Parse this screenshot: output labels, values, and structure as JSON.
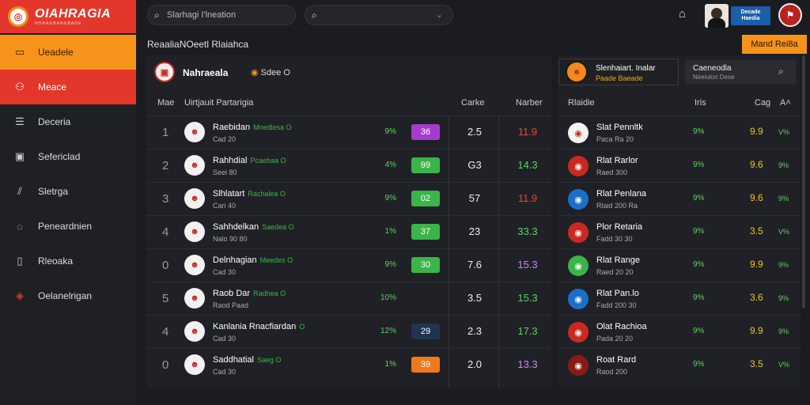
{
  "logo": {
    "title": "OIAHRAGIA",
    "subtitle": "HORAGBANGBAGE"
  },
  "sidebar": {
    "items": [
      {
        "label": "Ueadele",
        "icon": "tablet-icon"
      },
      {
        "label": "Meace",
        "icon": "network-icon"
      },
      {
        "label": "Deceria",
        "icon": "list-icon"
      },
      {
        "label": "Sefericlad",
        "icon": "badge-icon"
      },
      {
        "label": "Sletrga",
        "icon": "chart-icon"
      },
      {
        "label": "Peneardnien",
        "icon": "chat-icon"
      },
      {
        "label": "Rleoaka",
        "icon": "document-icon"
      },
      {
        "label": "Oelanelrigan",
        "icon": "shield-icon"
      }
    ]
  },
  "topbar": {
    "search1": "Slarhagi I'lneation",
    "search2": ""
  },
  "brand2": {
    "line1": "Decade",
    "line2": "Haedia"
  },
  "page": {
    "title": "ReaaliaNOeetl Rlaiahca",
    "action": "Mand Rei8a"
  },
  "match": {
    "team": "Nahraeala",
    "score": "Sdee O"
  },
  "left_headers": {
    "rank": "Mae",
    "player": "Uirtjauit Partarigia",
    "c1": "Carke",
    "c2": "Narber"
  },
  "rows": [
    {
      "rank": "1",
      "name": "Raebidan",
      "tag": "Mnedlesa O",
      "sub": "Cad 20",
      "pct": "9%",
      "pill": "36",
      "pill_color": "purple",
      "v1": "2.5",
      "v2": "11.9",
      "v2_color": "#e8453c"
    },
    {
      "rank": "2",
      "name": "Rahhdial",
      "tag": "Pcaebaa O",
      "sub": "Seei 80",
      "pct": "4%",
      "pill": "99",
      "pill_color": "green",
      "v1": "G3",
      "v2": "14.3",
      "v2_color": "#5ed064"
    },
    {
      "rank": "3",
      "name": "Slhlatart",
      "tag": "Rachalea O",
      "sub": "Cari 40",
      "pct": "9%",
      "pill": "02",
      "pill_color": "green",
      "v1": "57",
      "v2": "11.9",
      "v2_color": "#e8453c"
    },
    {
      "rank": "4",
      "name": "Sahhdelkan",
      "tag": "Saedea O",
      "sub": "Nalo 90 80",
      "pct": "1%",
      "pill": "37",
      "pill_color": "green",
      "v1": "23",
      "v2": "33.3",
      "v2_color": "#5ed064"
    },
    {
      "rank": "0",
      "name": "Delnhagian",
      "tag": "Meedes O",
      "sub": "Cad 30",
      "pct": "9%",
      "pill": "30",
      "pill_color": "green",
      "v1": "7.6",
      "v2": "15.3",
      "v2_color": "#c98ae8"
    },
    {
      "rank": "5",
      "name": "Raob Dar",
      "tag": "Radhea O",
      "sub": "Raod Paad",
      "pct": "10%",
      "pill": "",
      "pill_color": "none",
      "v1": "3.5",
      "v2": "15.3",
      "v2_color": "#5ed064"
    },
    {
      "rank": "4",
      "name": "Kanlania Rnacfiardan",
      "tag": "O",
      "sub": "Cad 30",
      "pct": "12%",
      "pill": "29",
      "pill_color": "dark",
      "v1": "2.3",
      "v2": "17.3",
      "v2_color": "#5ed064"
    },
    {
      "rank": "0",
      "name": "Saddhatial",
      "tag": "Saeg O",
      "sub": "Cad 30",
      "pct": "1%",
      "pill": "39",
      "pill_color": "orange",
      "v1": "2.0",
      "v2": "13.3",
      "v2_color": "#c98ae8"
    }
  ],
  "right": {
    "card": {
      "name": "Slenhaiart. Inalar",
      "sub": "Paade Baeade"
    },
    "search": {
      "title": "Caeneodla",
      "sub": "Neeiulon Dese"
    },
    "headers": {
      "name": "Rlaidie",
      "c1": "Iris",
      "c2": "Cag",
      "c3": "A"
    },
    "rows": [
      {
        "name": "Slat Pennltk",
        "sub": "Paca Ra 20",
        "a": "9%",
        "b": "9.9",
        "c": "V%",
        "icon_bg": "#f3f3f3",
        "icon_fg": "#c82a22"
      },
      {
        "name": "Rlat Rarlor",
        "sub": "Raed 300",
        "a": "9%",
        "b": "9.6",
        "c": "9%",
        "icon_bg": "#c82a22",
        "icon_fg": "#ffffff"
      },
      {
        "name": "Rlat Penlana",
        "sub": "Rlaid 200 Ra",
        "a": "9%",
        "b": "9.6",
        "c": "9%",
        "icon_bg": "#1c6fc8",
        "icon_fg": "#ffffff"
      },
      {
        "name": "Plor Retaria",
        "sub": "Fadd 30 30",
        "a": "9%",
        "b": "3.5",
        "c": "V%",
        "icon_bg": "#c82a22",
        "icon_fg": "#ffffff"
      },
      {
        "name": "Rlat Range",
        "sub": "Raed 20 20",
        "a": "9%",
        "b": "9.9",
        "c": "9%",
        "icon_bg": "#3ab54a",
        "icon_fg": "#ffffff"
      },
      {
        "name": "Rlat Pan.lo",
        "sub": "Fadd 200 30",
        "a": "9%",
        "b": "3.6",
        "c": "9%",
        "icon_bg": "#1c6fc8",
        "icon_fg": "#ffffff"
      },
      {
        "name": "Olat Rachioa",
        "sub": "Pada 20 20",
        "a": "9%",
        "b": "9.9",
        "c": "9%",
        "icon_bg": "#c82a22",
        "icon_fg": "#ffffff"
      },
      {
        "name": "Roat Rard",
        "sub": "Raod 200",
        "a": "9%",
        "b": "3.5",
        "c": "V%",
        "icon_bg": "#8a1a16",
        "icon_fg": "#ffffff"
      }
    ]
  },
  "colors": {
    "accent_orange": "#f7931a",
    "accent_red": "#e4372b",
    "positive": "#5ed064"
  }
}
